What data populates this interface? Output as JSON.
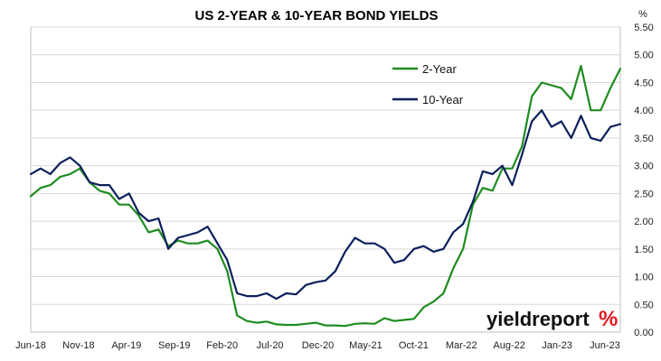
{
  "chart_data": {
    "type": "line",
    "title": "US 2-YEAR & 10-YEAR BOND YIELDS",
    "y_unit": "%",
    "ylim": [
      0,
      5.5
    ],
    "y_ticks": [
      "0.00",
      "0.50",
      "1.00",
      "1.50",
      "2.00",
      "2.50",
      "3.00",
      "3.50",
      "4.00",
      "4.50",
      "5.00",
      "5.50"
    ],
    "x_ticks": [
      "Jun-18",
      "Nov-18",
      "Apr-19",
      "Sep-19",
      "Feb-20",
      "Jul-20",
      "Dec-20",
      "May-21",
      "Oct-21",
      "Mar-22",
      "Aug-22",
      "Jan-23",
      "Jun-23"
    ],
    "grid": "horizontal",
    "legend_position": "top-right",
    "x": [
      "Jun-18",
      "Jul-18",
      "Aug-18",
      "Sep-18",
      "Oct-18",
      "Nov-18",
      "Dec-18",
      "Jan-19",
      "Feb-19",
      "Mar-19",
      "Apr-19",
      "May-19",
      "Jun-19",
      "Jul-19",
      "Aug-19",
      "Sep-19",
      "Oct-19",
      "Nov-19",
      "Dec-19",
      "Jan-20",
      "Feb-20",
      "Mar-20",
      "Apr-20",
      "May-20",
      "Jun-20",
      "Jul-20",
      "Aug-20",
      "Sep-20",
      "Oct-20",
      "Nov-20",
      "Dec-20",
      "Jan-21",
      "Feb-21",
      "Mar-21",
      "Apr-21",
      "May-21",
      "Jun-21",
      "Jul-21",
      "Aug-21",
      "Sep-21",
      "Oct-21",
      "Nov-21",
      "Dec-21",
      "Jan-22",
      "Feb-22",
      "Mar-22",
      "Apr-22",
      "May-22",
      "Jun-22",
      "Jul-22",
      "Aug-22",
      "Sep-22",
      "Oct-22",
      "Nov-22",
      "Dec-22",
      "Jan-23",
      "Feb-23",
      "Mar-23",
      "Apr-23",
      "May-23",
      "Jun-23"
    ],
    "series": [
      {
        "name": "2-Year",
        "color": "#1e8c1e",
        "values": [
          2.45,
          2.6,
          2.65,
          2.8,
          2.85,
          2.95,
          2.7,
          2.55,
          2.5,
          2.3,
          2.3,
          2.1,
          1.8,
          1.85,
          1.55,
          1.65,
          1.6,
          1.6,
          1.65,
          1.5,
          1.1,
          0.3,
          0.2,
          0.17,
          0.19,
          0.14,
          0.13,
          0.13,
          0.15,
          0.17,
          0.12,
          0.12,
          0.11,
          0.15,
          0.16,
          0.15,
          0.25,
          0.2,
          0.22,
          0.24,
          0.45,
          0.55,
          0.7,
          1.15,
          1.5,
          2.3,
          2.6,
          2.55,
          2.95,
          2.95,
          3.35,
          4.25,
          4.5,
          4.45,
          4.4,
          4.2,
          4.8,
          4.0,
          4.0,
          4.4,
          4.75
        ]
      },
      {
        "name": "10-Year",
        "color": "#0b1f5c",
        "values": [
          2.85,
          2.95,
          2.85,
          3.05,
          3.15,
          3.0,
          2.7,
          2.65,
          2.65,
          2.4,
          2.5,
          2.15,
          2.0,
          2.05,
          1.5,
          1.7,
          1.75,
          1.8,
          1.9,
          1.6,
          1.3,
          0.7,
          0.65,
          0.65,
          0.7,
          0.6,
          0.7,
          0.68,
          0.85,
          0.9,
          0.93,
          1.1,
          1.45,
          1.7,
          1.6,
          1.6,
          1.5,
          1.25,
          1.3,
          1.5,
          1.55,
          1.45,
          1.5,
          1.8,
          1.95,
          2.35,
          2.9,
          2.85,
          3.0,
          2.65,
          3.2,
          3.8,
          4.0,
          3.7,
          3.8,
          3.5,
          3.9,
          3.5,
          3.45,
          3.7,
          3.75
        ]
      }
    ]
  },
  "logo": {
    "text": "yieldreport",
    "pct": "%"
  }
}
